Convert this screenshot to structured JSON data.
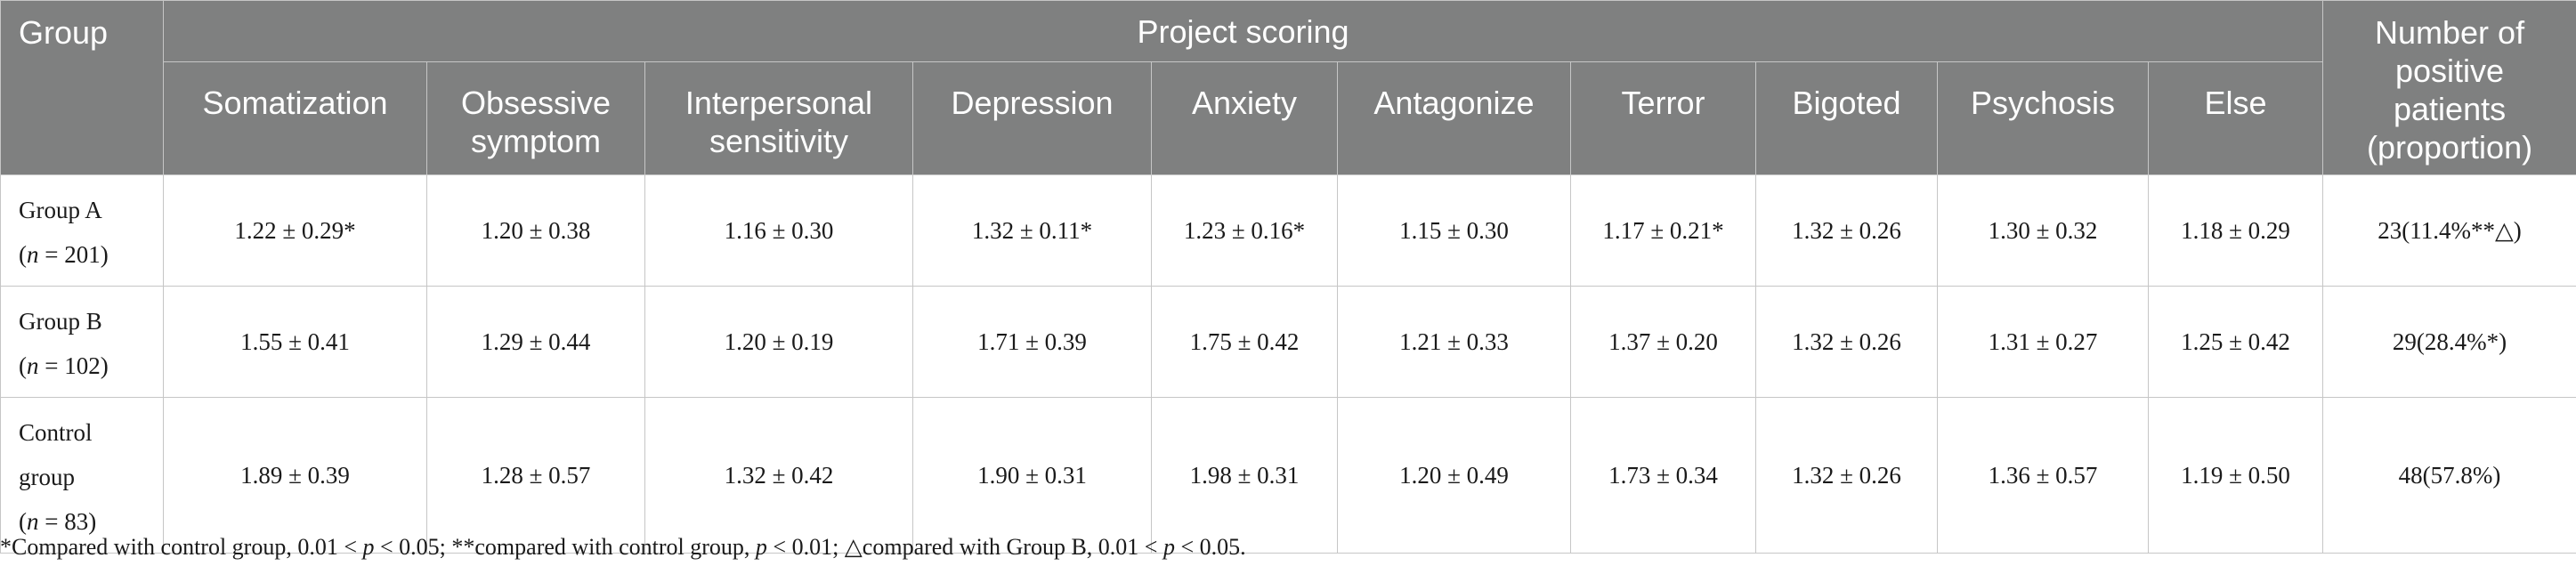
{
  "header": {
    "group": "Group",
    "project_scoring": "Project scoring",
    "npp_line1": "Number of",
    "npp_line2": "positive",
    "npp_line3": "patients",
    "npp_line4": "(proportion)",
    "sub": [
      {
        "l1": "Somatization",
        "l2": ""
      },
      {
        "l1": "Obsessive",
        "l2": "symptom"
      },
      {
        "l1": "Interpersonal",
        "l2": "sensitivity"
      },
      {
        "l1": "Depression",
        "l2": ""
      },
      {
        "l1": "Anxiety",
        "l2": ""
      },
      {
        "l1": "Antagonize",
        "l2": ""
      },
      {
        "l1": "Terror",
        "l2": ""
      },
      {
        "l1": "Bigoted",
        "l2": ""
      },
      {
        "l1": "Psychosis",
        "l2": ""
      },
      {
        "l1": "Else",
        "l2": ""
      }
    ]
  },
  "rows": [
    {
      "name_line1": "Group A",
      "name_line2": "",
      "n_var": "n",
      "n_rest": " = 201)",
      "values": [
        "1.22 ± 0.29*",
        "1.20 ± 0.38",
        "1.16 ± 0.30",
        "1.32 ± 0.11*",
        "1.23 ± 0.16*",
        "1.15 ± 0.30",
        "1.17 ± 0.21*",
        "1.32 ± 0.26",
        "1.30 ± 0.32",
        "1.18 ± 0.29"
      ],
      "positive": "23(11.4%**△)"
    },
    {
      "name_line1": "Group B",
      "name_line2": "",
      "n_var": "n",
      "n_rest": " = 102)",
      "values": [
        "1.55 ± 0.41",
        "1.29 ± 0.44",
        "1.20 ± 0.19",
        "1.71 ± 0.39",
        "1.75 ± 0.42",
        "1.21 ± 0.33",
        "1.37 ± 0.20",
        "1.32 ± 0.26",
        "1.31 ± 0.27",
        "1.25 ± 0.42"
      ],
      "positive": "29(28.4%*)"
    },
    {
      "name_line1": "Control",
      "name_line2": "group",
      "n_var": "n",
      "n_rest": " = 83)",
      "values": [
        "1.89 ± 0.39",
        "1.28 ± 0.57",
        "1.32 ± 0.42",
        "1.90 ± 0.31",
        "1.98 ± 0.31",
        "1.20 ± 0.49",
        "1.73 ± 0.34",
        "1.32 ± 0.26",
        "1.36 ± 0.57",
        "1.19 ± 0.50"
      ],
      "positive": "48(57.8%)"
    }
  ],
  "footnote": {
    "part1": "*Compared with control group, 0.01 < ",
    "p1": "p",
    "part2": " < 0.05; **compared with control group, ",
    "p2": "p",
    "part3": " < 0.01; △compared with Group B, 0.01 < ",
    "p3": "p",
    "part4": " < 0.05."
  },
  "colors": {
    "header_bg": "#7f8080",
    "header_text": "#ffffff",
    "grid": "#c6c6c6"
  }
}
